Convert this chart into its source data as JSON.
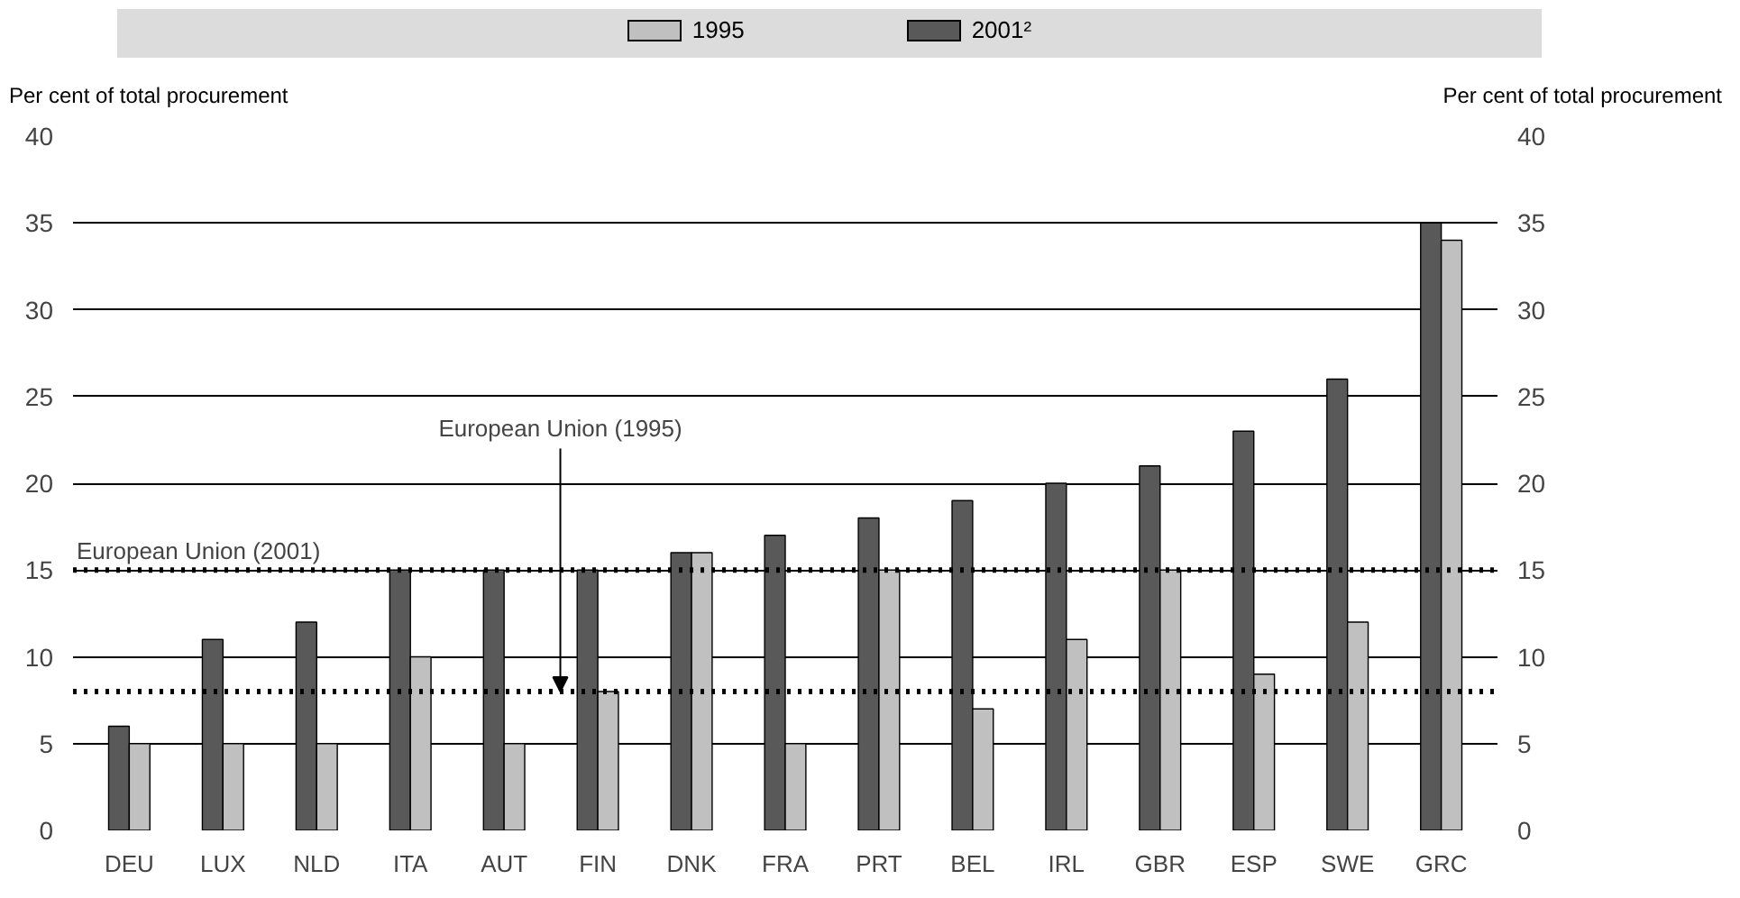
{
  "chart_data": {
    "type": "bar",
    "ylabel": "Per cent of total procurement",
    "y2label": "Per cent of total procurement",
    "categories": [
      "DEU",
      "LUX",
      "NLD",
      "ITA",
      "AUT",
      "FIN",
      "DNK",
      "FRA",
      "PRT",
      "BEL",
      "IRL",
      "GBR",
      "ESP",
      "SWE",
      "GRC"
    ],
    "series": [
      {
        "name": "2001²",
        "color": "#595959",
        "values": [
          6,
          11,
          12,
          15,
          15,
          15,
          16,
          17,
          18,
          19,
          20,
          21,
          23,
          26,
          35
        ]
      },
      {
        "name": "1995",
        "color": "#c0c0c0",
        "values": [
          5,
          5,
          5,
          10,
          5,
          8,
          16,
          5,
          15,
          7,
          11,
          15,
          9,
          12,
          34
        ]
      }
    ],
    "ylim": [
      0,
      40
    ],
    "yticks": [
      0,
      5,
      10,
      15,
      20,
      25,
      30,
      35,
      40
    ],
    "y2lim": [
      0,
      40
    ],
    "y2ticks": [
      0,
      5,
      10,
      15,
      20,
      25,
      30,
      35,
      40
    ],
    "grid": "y",
    "legend": "top",
    "ref_lines": [
      {
        "axis": "y",
        "value": 15,
        "label": "European Union (2001)",
        "color": "#000000",
        "line_style": "dotted"
      },
      {
        "axis": "y",
        "value": 8,
        "label": "European Union (1995)",
        "color": "#000000",
        "line_style": "dotted"
      }
    ]
  }
}
